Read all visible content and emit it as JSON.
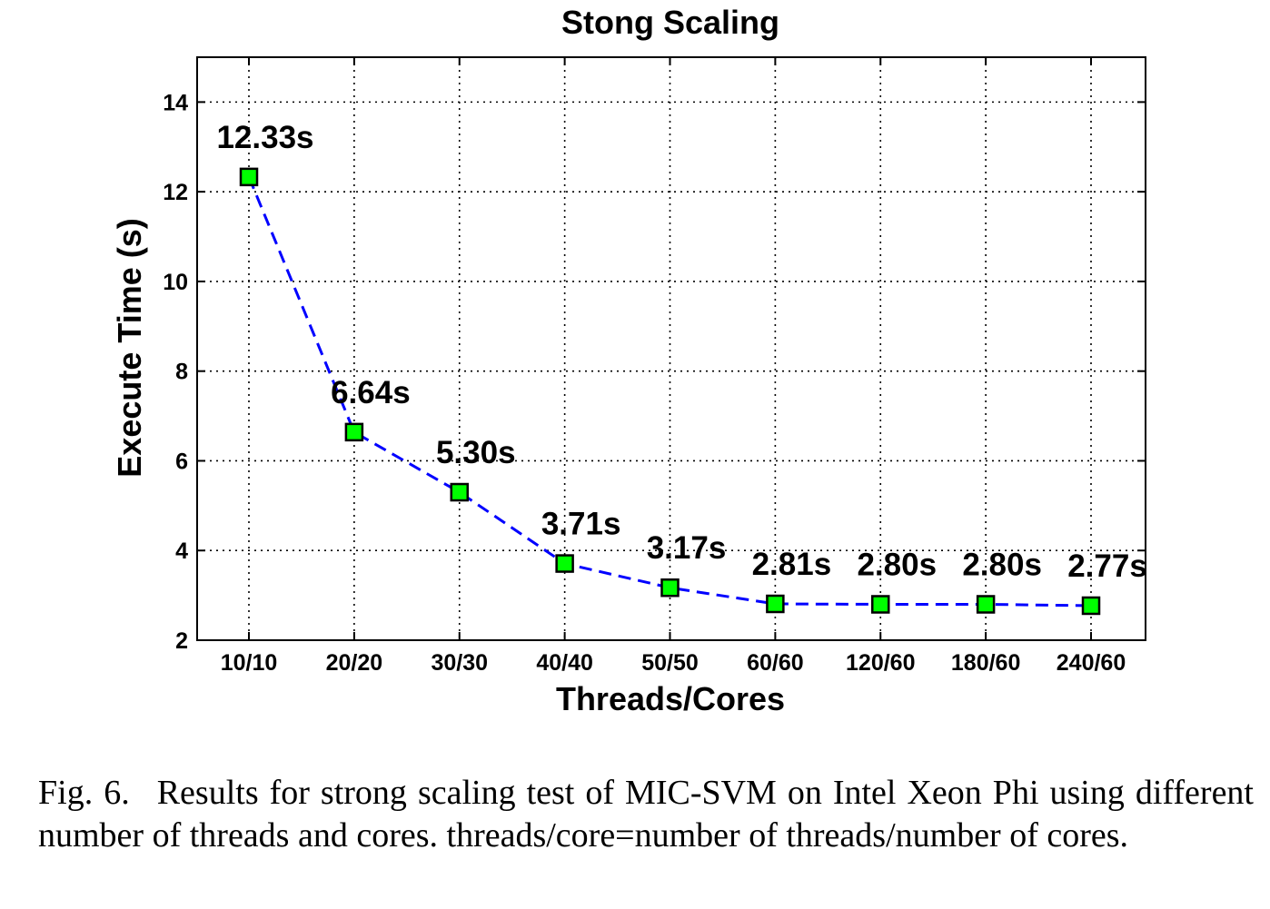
{
  "chart_data": {
    "type": "line",
    "title": "Stong Scaling",
    "xlabel": "Threads/Cores",
    "ylabel": "Execute Time (s)",
    "categories": [
      "10/10",
      "20/20",
      "30/30",
      "40/40",
      "50/50",
      "60/60",
      "120/60",
      "180/60",
      "240/60"
    ],
    "series": [
      {
        "values": [
          12.33,
          6.64,
          5.3,
          3.71,
          3.17,
          2.81,
          2.8,
          2.8,
          2.77
        ],
        "data_labels": [
          "12.33s",
          "6.64s",
          "5.30s",
          "3.71s",
          "3.17s",
          "2.81s",
          "2.80s",
          "2.80s",
          "2.77s"
        ],
        "line_color": "#0000ff",
        "line_style": "dashed",
        "marker": "square",
        "marker_color": "#00ff00"
      }
    ],
    "ylim": [
      2,
      15
    ],
    "yticks": [
      2,
      4,
      6,
      8,
      10,
      12,
      14
    ],
    "grid": true
  },
  "caption": {
    "number": "Fig. 6.",
    "text": "Results for strong scaling test of MIC-SVM on Intel Xeon Phi using different number of threads and cores. threads/core=number of threads/number of cores."
  }
}
